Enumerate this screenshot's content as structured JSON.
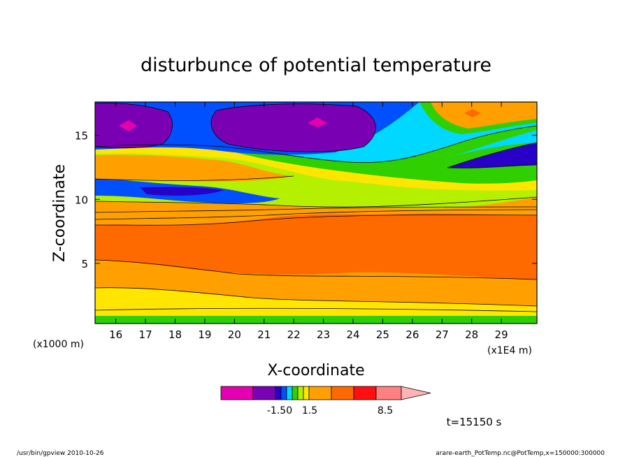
{
  "chart_data": {
    "type": "heatmap",
    "title": "disturbunce of potential temperature",
    "xlabel": "X-coordinate",
    "ylabel": "Z-coordinate",
    "x_unit_left": "(x1000 m)",
    "x_unit_right": "(x1E4 m)",
    "xlim": [
      15.3,
      30.2
    ],
    "ylim": [
      0.3,
      17.6
    ],
    "x_ticks": [
      "16",
      "17",
      "18",
      "19",
      "20",
      "21",
      "22",
      "23",
      "24",
      "25",
      "26",
      "27",
      "28",
      "29"
    ],
    "y_ticks": [
      "5",
      "10",
      "15"
    ],
    "colorbar_labels": [
      "-1.50",
      "1.5",
      "8.5"
    ],
    "colorbar_colors": [
      "#e400b0",
      "#7a00b4",
      "#2800c8",
      "#0050ff",
      "#00d8ff",
      "#30d000",
      "#b4f000",
      "#ffe600",
      "#ffa000",
      "#ff6a00",
      "#ff1010",
      "#ff8080",
      "#ffb4b4"
    ],
    "field_layers": [
      {
        "z": [
          0.3,
          0.9
        ],
        "value": "green"
      },
      {
        "z": [
          0.9,
          1.5
        ],
        "value": "yellow"
      },
      {
        "z": [
          1.5,
          4.5
        ],
        "value": "orange"
      },
      {
        "z": [
          4.5,
          8.0
        ],
        "value": "dark-orange"
      },
      {
        "z": [
          8.0,
          9.8
        ],
        "value": "orange"
      },
      {
        "z": [
          9.8,
          11.0
        ],
        "value": "yellow/green/blue mix"
      },
      {
        "z": [
          11.0,
          14.0
        ],
        "value": "orange/yellow/green"
      },
      {
        "z": [
          14.0,
          17.6
        ],
        "value": "purple/blue/cyan/green"
      }
    ]
  },
  "annotations": {
    "time": "t=15150 s",
    "footer_left": "/usr/bin/gpview   2010-10-26",
    "footer_right": "arare-earth_PotTemp.nc@PotTemp,x=150000:300000"
  }
}
